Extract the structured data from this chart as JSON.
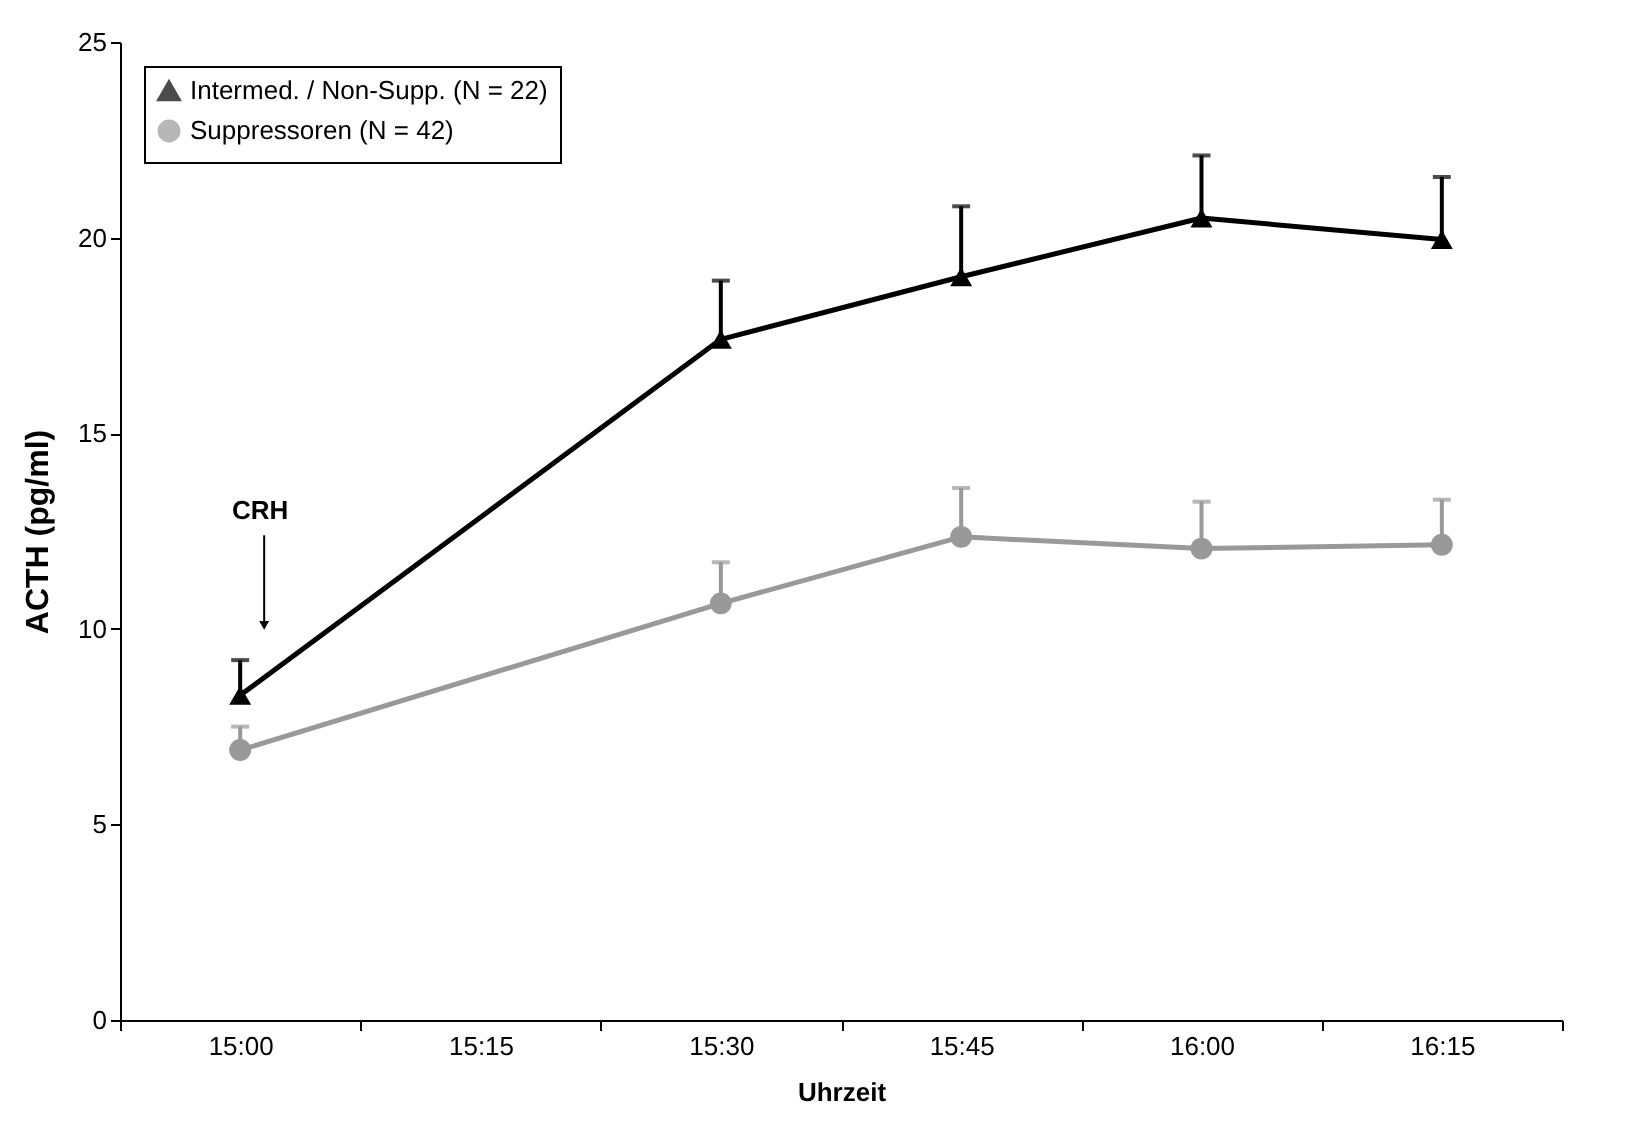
{
  "chart_data": {
    "type": "line",
    "xlabel": "Uhrzeit",
    "ylabel": "ACTH (pg/ml)",
    "categories": [
      "15:00",
      "15:15",
      "15:30",
      "15:45",
      "16:00",
      "16:15"
    ],
    "series": [
      {
        "name": "Intermed. / Non-Supp. (N = 22)",
        "color": "#000000",
        "marker": "triangle",
        "values": [
          8.3,
          null,
          17.4,
          19.0,
          20.5,
          19.95
        ],
        "errors": [
          [
            8.3,
            9.2
          ],
          null,
          [
            17.4,
            18.9
          ],
          [
            19.0,
            20.8
          ],
          [
            20.5,
            22.1
          ],
          [
            19.95,
            21.55
          ]
        ]
      },
      {
        "name": "Suppressoren (N = 42)",
        "color": "#999999",
        "marker": "circle",
        "values": [
          6.9,
          null,
          10.65,
          12.35,
          12.05,
          12.15
        ],
        "errors": [
          [
            6.9,
            7.5
          ],
          null,
          [
            10.65,
            11.7
          ],
          [
            12.35,
            13.6
          ],
          [
            12.05,
            13.25
          ],
          [
            12.15,
            13.3
          ]
        ]
      }
    ],
    "ylim": [
      0,
      25
    ],
    "yticks": [
      0,
      5,
      10,
      15,
      20,
      25
    ],
    "grid": false,
    "legend": "top left",
    "line_style": "solid",
    "annotations": [
      "CRH"
    ]
  }
}
